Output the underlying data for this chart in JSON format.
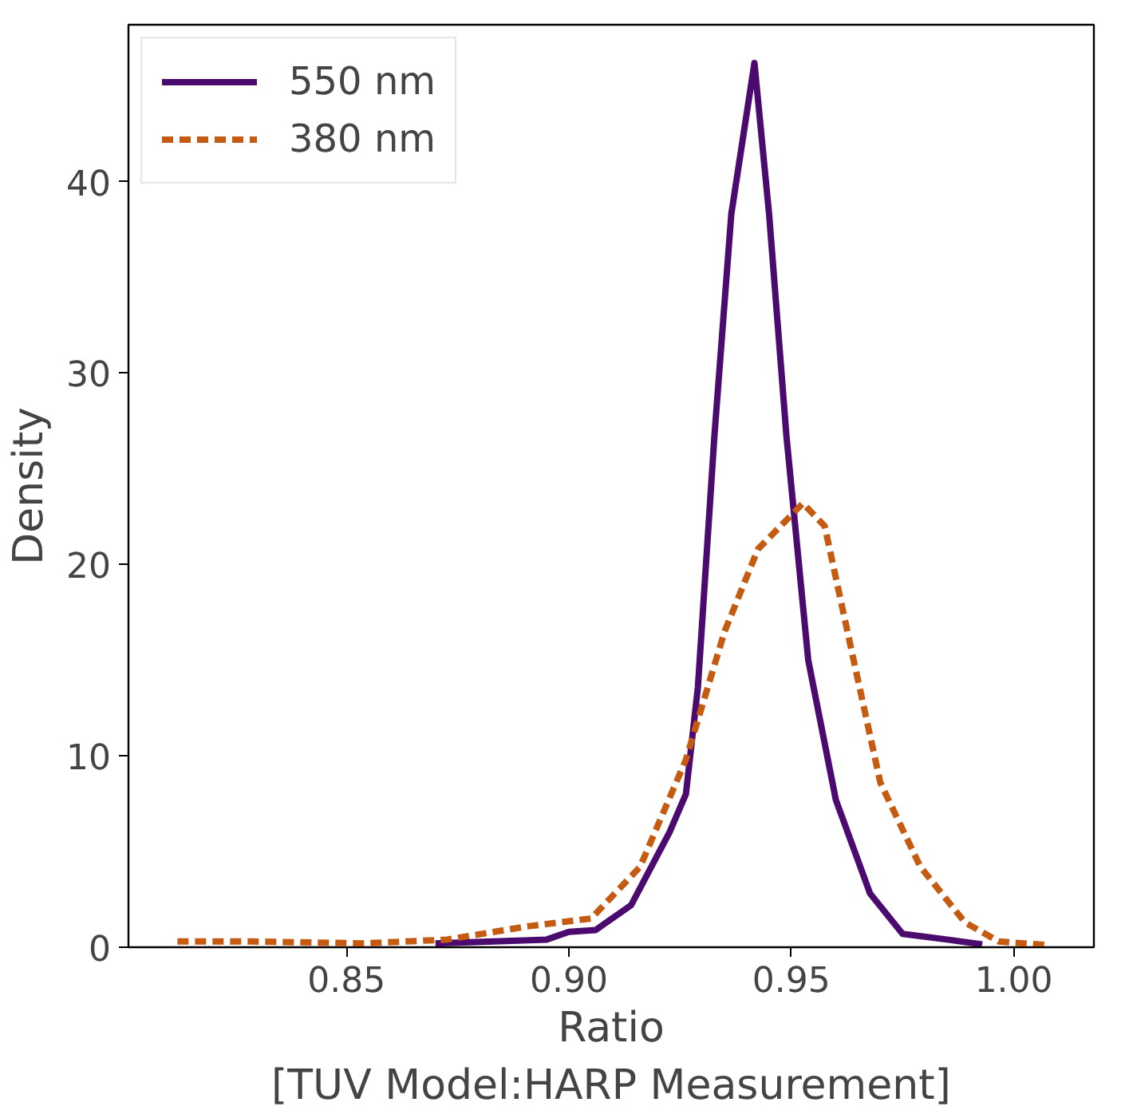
{
  "chart_data": {
    "type": "line",
    "xlabel": "Ratio\n[TUV Model:HARP Measurement]",
    "ylabel": "Density",
    "xlim": [
      0.801,
      1.018
    ],
    "ylim": [
      0,
      48.2
    ],
    "xticks": [
      {
        "value": 0.85,
        "label": "0.85"
      },
      {
        "value": 0.9,
        "label": "0.90"
      },
      {
        "value": 0.95,
        "label": "0.95"
      },
      {
        "value": 1.0,
        "label": "1.00"
      }
    ],
    "yticks": [
      0,
      10,
      20,
      30,
      40
    ],
    "grid": false,
    "legend": "top left",
    "marker": "none",
    "series": [
      {
        "name": "550 nm",
        "color": "#4b0a6e",
        "line_style": "solid",
        "x": [
          0.87,
          0.895,
          0.9,
          0.906,
          0.914,
          0.9226,
          0.9263,
          0.929,
          0.9327,
          0.9365,
          0.9417,
          0.945,
          0.9489,
          0.9538,
          0.96,
          0.9677,
          0.975,
          0.985,
          0.9929
        ],
        "values": [
          0.2,
          0.4,
          0.8,
          0.9,
          2.2,
          6,
          8,
          13.6,
          26.7,
          38.3,
          46.2,
          38.3,
          26.7,
          15,
          7.7,
          2.8,
          0.7,
          0.4,
          0.15
        ]
      },
      {
        "name": "380 nm",
        "color": "#c55a11",
        "line_style": "dashed",
        "x": [
          0.812,
          0.8286,
          0.854,
          0.8726,
          0.891,
          0.905,
          0.916,
          0.9263,
          0.935,
          0.9425,
          0.9526,
          0.9575,
          0.964,
          0.97,
          0.979,
          0.989,
          0.9966,
          1.008
        ],
        "values": [
          0.3,
          0.3,
          0.2,
          0.4,
          1.1,
          1.5,
          4.2,
          9.8,
          16.5,
          20.8,
          23.2,
          22,
          15,
          8.6,
          4.2,
          1.3,
          0.3,
          0.1
        ]
      }
    ]
  }
}
